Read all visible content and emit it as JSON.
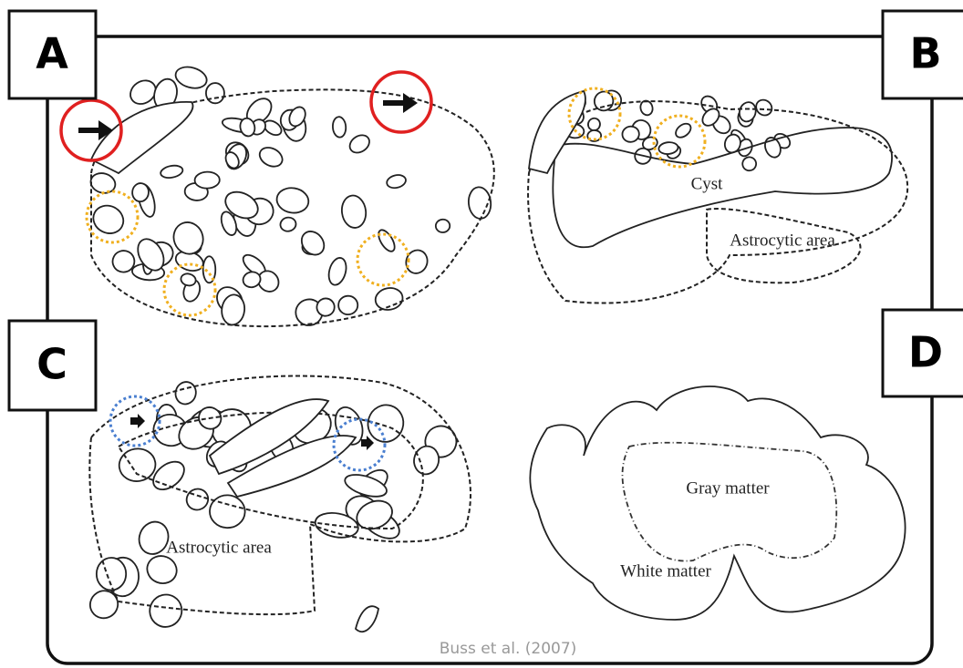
{
  "panels": [
    {
      "label": "A"
    },
    {
      "label": "B",
      "annotations": [
        "Cyst",
        "Astrocytic area"
      ]
    },
    {
      "label": "C",
      "annotations": [
        "Astrocytic area"
      ]
    },
    {
      "label": "D",
      "annotations": [
        "Gray matter",
        "White matter"
      ]
    }
  ],
  "caption": "Buss et al. (2007)"
}
